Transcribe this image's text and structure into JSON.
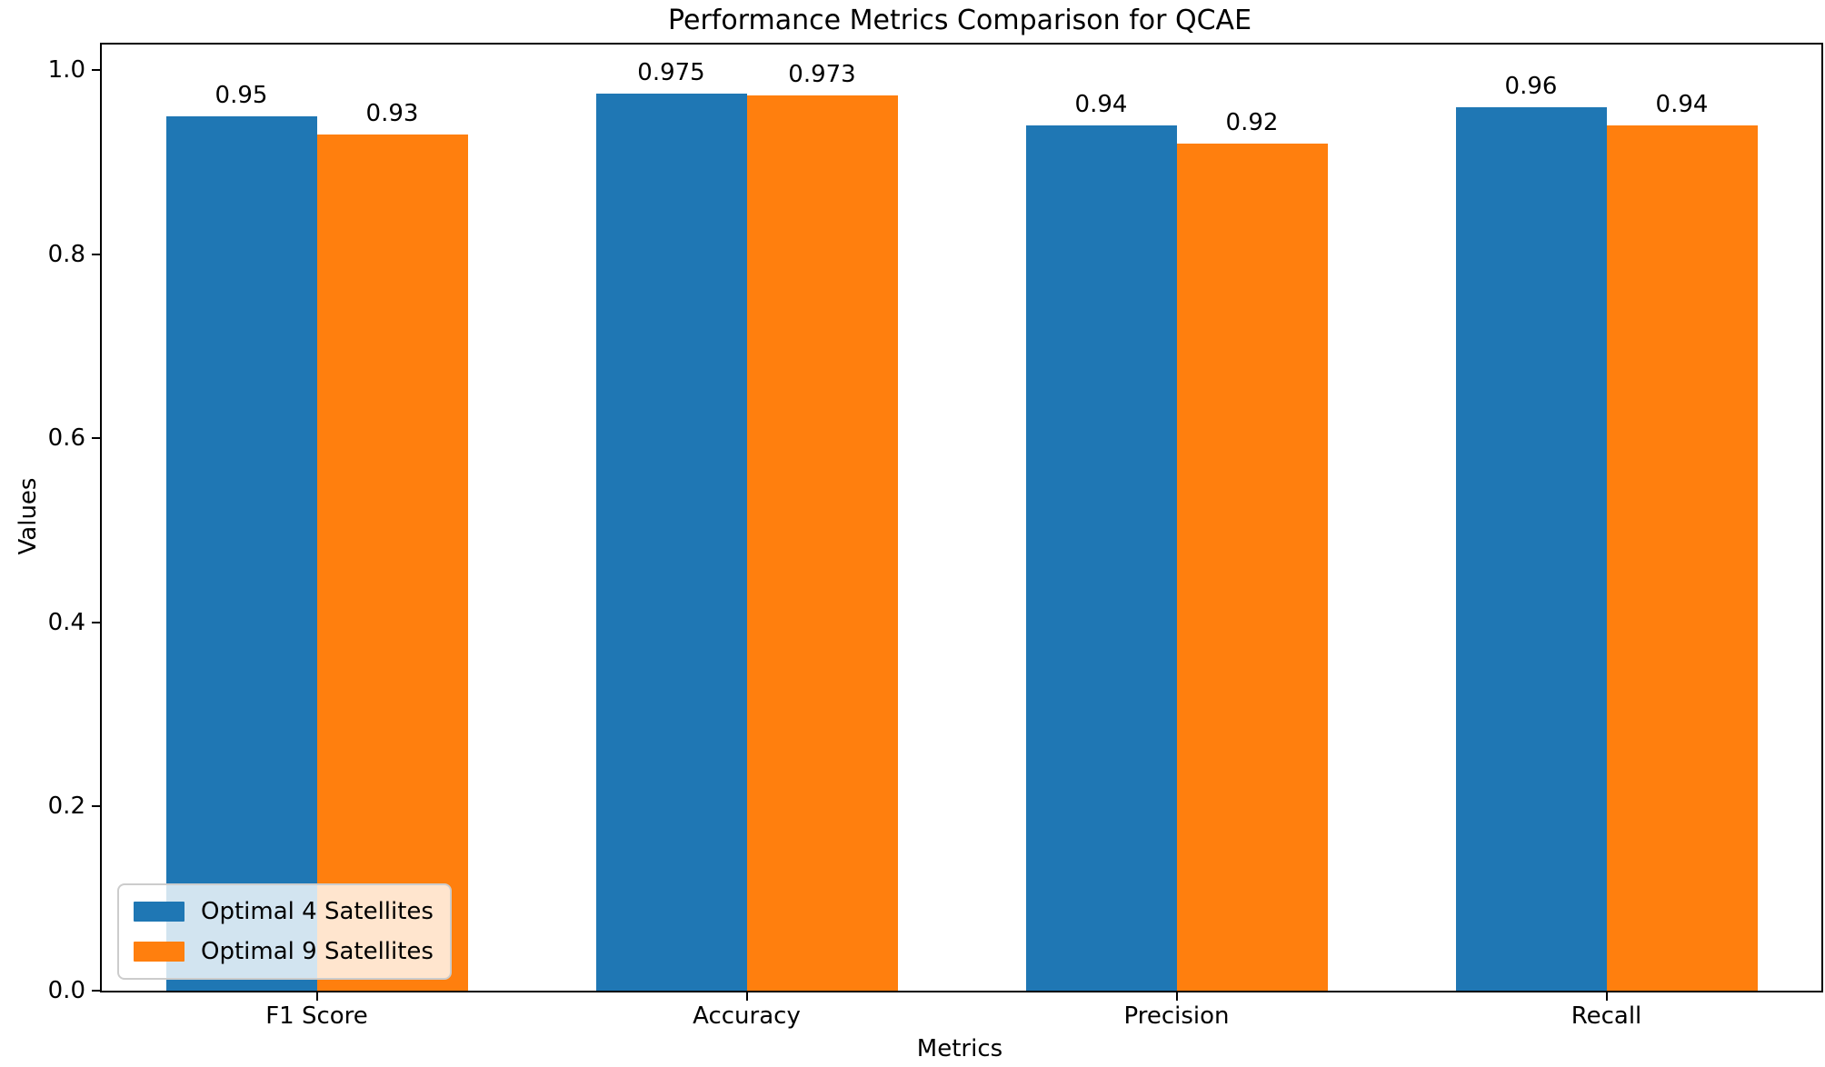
{
  "chart_data": {
    "type": "bar",
    "title": "Performance Metrics Comparison for QCAE",
    "xlabel": "Metrics",
    "ylabel": "Values",
    "categories": [
      "F1 Score",
      "Accuracy",
      "Precision",
      "Recall"
    ],
    "series": [
      {
        "name": "Optimal 4 Satellites",
        "color": "#1f77b4",
        "values": [
          0.95,
          0.975,
          0.94,
          0.96
        ],
        "value_labels": [
          "0.95",
          "0.975",
          "0.94",
          "0.96"
        ]
      },
      {
        "name": "Optimal 9 Satellites",
        "color": "#ff7f0e",
        "values": [
          0.93,
          0.973,
          0.92,
          0.94
        ],
        "value_labels": [
          "0.93",
          "0.973",
          "0.92",
          "0.94"
        ]
      }
    ],
    "ylim": [
      0,
      1.028
    ],
    "yticks": [
      {
        "value": 0.0,
        "label": "0.0"
      },
      {
        "value": 0.2,
        "label": "0.2"
      },
      {
        "value": 0.4,
        "label": "0.4"
      },
      {
        "value": 0.6,
        "label": "0.6"
      },
      {
        "value": 0.8,
        "label": "0.8"
      },
      {
        "value": 1.0,
        "label": "1.0"
      }
    ],
    "bar_width_fraction": 0.35,
    "grid": false,
    "legend_position": "lower-left",
    "colors": {
      "spine": "#000000",
      "text": "#000000",
      "legend_border": "#cccccc"
    }
  }
}
